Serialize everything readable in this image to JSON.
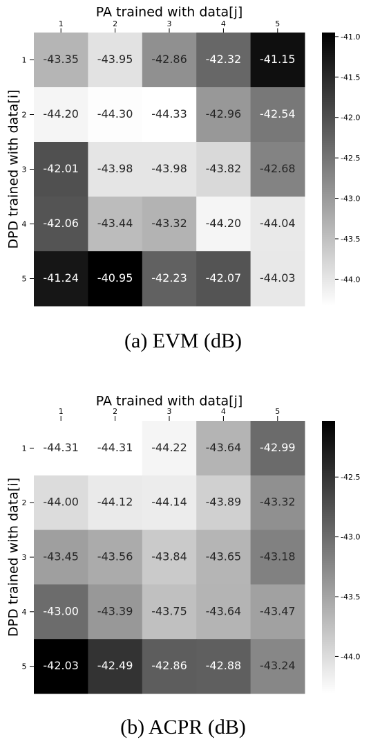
{
  "chart_data": [
    {
      "type": "heatmap",
      "caption": "(a)  EVM  (dB)",
      "xlabel": "PA trained with data[j]",
      "ylabel": "DPD trained with data[i]",
      "x_categories": [
        "1",
        "2",
        "3",
        "4",
        "5"
      ],
      "y_categories": [
        "1",
        "2",
        "3",
        "4",
        "5"
      ],
      "values": [
        [
          -43.35,
          -43.95,
          -42.86,
          -42.32,
          -41.15
        ],
        [
          -44.2,
          -44.3,
          -44.33,
          -42.96,
          -42.54
        ],
        [
          -42.01,
          -43.98,
          -43.98,
          -43.82,
          -42.68
        ],
        [
          -42.06,
          -43.44,
          -43.32,
          -44.2,
          -44.04
        ],
        [
          -41.24,
          -40.95,
          -42.23,
          -42.07,
          -44.03
        ]
      ],
      "colorbar": {
        "vmin": -44.33,
        "vmax": -40.95,
        "ticks": [
          "-41.0",
          "-41.5",
          "-42.0",
          "-42.5",
          "-43.0",
          "-43.5",
          "-44.0"
        ],
        "tick_values": [
          -41.0,
          -41.5,
          -42.0,
          -42.5,
          -43.0,
          -43.5,
          -44.0
        ]
      },
      "colormap": "grayscale, low = white, high = black"
    },
    {
      "type": "heatmap",
      "caption": "(b)  ACPR  (dB)",
      "xlabel": "PA trained with data[j]",
      "ylabel": "DPD trained with data[i]",
      "x_categories": [
        "1",
        "2",
        "3",
        "4",
        "5"
      ],
      "y_categories": [
        "1",
        "2",
        "3",
        "4",
        "5"
      ],
      "values": [
        [
          -44.31,
          -44.31,
          -44.22,
          -43.64,
          -42.99
        ],
        [
          -44.0,
          -44.12,
          -44.14,
          -43.89,
          -43.32
        ],
        [
          -43.45,
          -43.56,
          -43.84,
          -43.65,
          -43.18
        ],
        [
          -43.0,
          -43.39,
          -43.75,
          -43.64,
          -43.47
        ],
        [
          -42.03,
          -42.49,
          -42.86,
          -42.88,
          -43.24
        ]
      ],
      "colorbar": {
        "vmin": -44.31,
        "vmax": -42.03,
        "ticks": [
          "-42.5",
          "-43.0",
          "-43.5",
          "-44.0"
        ],
        "tick_values": [
          -42.5,
          -43.0,
          -43.5,
          -44.0
        ]
      },
      "colormap": "grayscale, low = white, high = black"
    }
  ]
}
